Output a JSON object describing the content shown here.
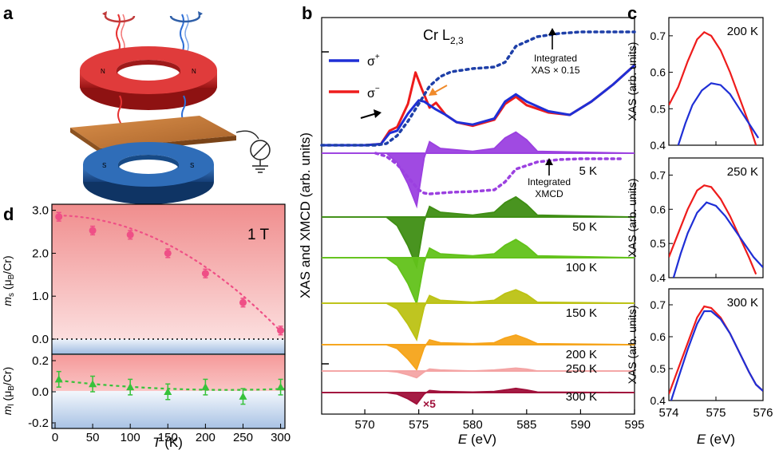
{
  "panel_labels": {
    "a": "a",
    "b": "b",
    "c": "c",
    "d": "d"
  },
  "colors": {
    "sigma_plus": "#1f2fd6",
    "sigma_minus": "#ee1c1c",
    "integrated": "#1e3fa8",
    "magnet_top": "#d42a2a",
    "magnet_bottom": "#1f5fa8",
    "sample": "#c77a3a",
    "ms_marker": "#ef4f86",
    "ml_marker": "#37c23a"
  },
  "panel_b": {
    "ylabel": "XAS and XMCD (arb. units)",
    "xlabel_var": "E",
    "xlabel_unit": " (eV)",
    "edge_label": "Cr L",
    "edge_sub": "2,3",
    "legend": [
      {
        "label": "σ",
        "sup": "+",
        "color": "#1f2fd6"
      },
      {
        "label": "σ",
        "sup": "−",
        "color": "#ee1c1c"
      }
    ],
    "annotation_xas": [
      "Integrated",
      "XAS × 0.15"
    ],
    "annotation_xmcd": [
      "Integrated",
      "XMCD"
    ],
    "multiplier": "×5",
    "xticks": [
      570,
      575,
      580,
      585,
      590,
      595
    ],
    "xlim": [
      566,
      595
    ]
  },
  "panel_c": {
    "ylabel": "XAS (arb. units)",
    "xlabel_var": "E",
    "xlabel_unit": " (eV)",
    "xticks": [
      574,
      575,
      576
    ],
    "yticks": [
      0.4,
      0.5,
      0.6,
      0.7
    ],
    "xlim": [
      574,
      576
    ],
    "ylim": [
      0.4,
      0.75
    ]
  },
  "panel_d": {
    "field_label": "1 T",
    "xlabel_var": "T",
    "xlabel_unit": " (K)",
    "ylabel_top": "m",
    "ylabel_top_sub": "s",
    "ylabel_top_unit": "(μ",
    "ylabel_top_unit2": "/Cr)",
    "ylabel_bottom": "m",
    "ylabel_bottom_sub": "l",
    "ylabel_sub_B": "B",
    "xticks": [
      0,
      50,
      100,
      150,
      200,
      250,
      300
    ],
    "yticks_top": [
      "0.0",
      "1.0",
      "2.0",
      "3.0"
    ],
    "yticks_bottom": [
      "-0.2",
      "0.0",
      "0.2"
    ]
  },
  "chart_data": [
    {
      "type": "line",
      "panel": "b",
      "xlabel": "E (eV)",
      "ylabel": "XAS and XMCD (arb. units)",
      "xlim": [
        566,
        595
      ],
      "series": [
        {
          "name": "σ+",
          "x": [
            566,
            570,
            571.5,
            572.3,
            573,
            574,
            575,
            575.5,
            576.5,
            577.5,
            578.5,
            580,
            582,
            583,
            584,
            585,
            587,
            589,
            591,
            593,
            595
          ],
          "values": [
            0.3,
            0.3,
            0.31,
            0.4,
            0.42,
            0.56,
            0.67,
            0.66,
            0.6,
            0.55,
            0.49,
            0.47,
            0.52,
            0.66,
            0.72,
            0.66,
            0.58,
            0.55,
            0.66,
            0.8,
            0.96
          ]
        },
        {
          "name": "σ−",
          "x": [
            566,
            570,
            571.5,
            572.3,
            573,
            574,
            574.7,
            575.3,
            576,
            576.6,
            577.5,
            578.5,
            580,
            582,
            583,
            584,
            585,
            587,
            589,
            591,
            593,
            595
          ],
          "values": [
            0.3,
            0.3,
            0.31,
            0.42,
            0.45,
            0.64,
            0.9,
            0.76,
            0.61,
            0.65,
            0.55,
            0.49,
            0.46,
            0.51,
            0.64,
            0.7,
            0.63,
            0.57,
            0.55,
            0.66,
            0.8,
            0.96
          ]
        }
      ]
    },
    {
      "type": "area",
      "panel": "b",
      "series": [
        {
          "name": "5 K",
          "temperature": 5,
          "x": [
            566,
            572,
            573,
            574,
            574.8,
            575.5,
            576,
            577,
            580,
            582,
            583,
            584,
            585,
            586,
            595
          ],
          "values": [
            0,
            0,
            -0.1,
            -0.32,
            -0.55,
            -0.05,
            0.12,
            0.05,
            0.02,
            0.05,
            0.16,
            0.22,
            0.14,
            0.02,
            0
          ]
        },
        {
          "name": "50 K",
          "temperature": 50,
          "x": [
            566,
            572,
            573,
            574,
            574.8,
            575.5,
            576,
            577,
            580,
            582,
            583,
            584,
            585,
            586,
            595
          ],
          "values": [
            0,
            0,
            -0.09,
            -0.3,
            -0.52,
            -0.05,
            0.11,
            0.05,
            0.02,
            0.05,
            0.15,
            0.21,
            0.13,
            0.02,
            0
          ]
        },
        {
          "name": "100 K",
          "temperature": 100,
          "x": [
            566,
            572,
            573,
            574,
            574.8,
            575.5,
            576,
            577,
            580,
            582,
            583,
            584,
            585,
            586,
            595
          ],
          "values": [
            0,
            0,
            -0.08,
            -0.27,
            -0.48,
            -0.05,
            0.1,
            0.04,
            0.02,
            0.04,
            0.13,
            0.19,
            0.12,
            0.02,
            0
          ]
        },
        {
          "name": "150 K",
          "temperature": 150,
          "x": [
            566,
            572,
            573,
            574,
            574.8,
            575.5,
            576,
            577,
            580,
            582,
            583,
            584,
            585,
            586,
            595
          ],
          "values": [
            0,
            0,
            -0.06,
            -0.22,
            -0.38,
            -0.04,
            0.08,
            0.03,
            0.01,
            0.03,
            0.1,
            0.14,
            0.09,
            0.01,
            0
          ]
        },
        {
          "name": "200 K",
          "temperature": 200,
          "x": [
            566,
            572,
            573,
            574,
            574.8,
            575.5,
            576,
            577,
            580,
            582,
            583,
            584,
            585,
            586,
            595
          ],
          "values": [
            0,
            0,
            -0.04,
            -0.15,
            -0.26,
            -0.03,
            0.05,
            0.02,
            0.01,
            0.02,
            0.07,
            0.1,
            0.06,
            0.01,
            0
          ]
        },
        {
          "name": "250 K",
          "temperature": 250,
          "x": [
            566,
            572,
            573,
            574,
            574.8,
            575.5,
            576,
            577,
            580,
            582,
            583,
            584,
            585,
            586,
            595
          ],
          "values": [
            0,
            0,
            -0.01,
            -0.04,
            -0.07,
            -0.01,
            0.02,
            0.01,
            0.0,
            0.01,
            0.02,
            0.03,
            0.02,
            0.0,
            0
          ]
        },
        {
          "name": "300 K",
          "temperature": 300,
          "x": [
            566,
            572,
            573,
            574,
            574.8,
            575.5,
            576,
            577,
            580,
            582,
            583,
            584,
            585,
            586,
            595
          ],
          "values": [
            0,
            0,
            -0.03,
            -0.12,
            -0.22,
            -0.03,
            0.04,
            0.02,
            0.01,
            0.02,
            0.05,
            0.08,
            0.05,
            0.01,
            0
          ]
        }
      ]
    },
    {
      "type": "line",
      "panel": "c",
      "temperature": "200 K",
      "xlim": [
        574,
        576
      ],
      "ylim": [
        0.4,
        0.75
      ],
      "series": [
        {
          "name": "σ−",
          "x": [
            574,
            574.2,
            574.4,
            574.6,
            574.75,
            574.9,
            575.1,
            575.3,
            575.5,
            575.7,
            575.85
          ],
          "values": [
            0.51,
            0.56,
            0.63,
            0.69,
            0.71,
            0.7,
            0.66,
            0.6,
            0.53,
            0.46,
            0.4
          ]
        },
        {
          "name": "σ+",
          "x": [
            574.2,
            574.35,
            574.5,
            574.7,
            574.9,
            575.1,
            575.3,
            575.5,
            575.7,
            575.9
          ],
          "values": [
            0.4,
            0.46,
            0.51,
            0.55,
            0.57,
            0.565,
            0.54,
            0.5,
            0.46,
            0.42
          ]
        }
      ]
    },
    {
      "type": "line",
      "panel": "c",
      "temperature": "250 K",
      "xlim": [
        574,
        576
      ],
      "ylim": [
        0.4,
        0.75
      ],
      "series": [
        {
          "name": "σ−",
          "x": [
            574,
            574.2,
            574.4,
            574.6,
            574.75,
            574.9,
            575.1,
            575.3,
            575.5,
            575.7,
            575.85
          ],
          "values": [
            0.46,
            0.53,
            0.6,
            0.655,
            0.67,
            0.665,
            0.63,
            0.58,
            0.52,
            0.46,
            0.41
          ]
        },
        {
          "name": "σ+",
          "x": [
            574.1,
            574.25,
            574.4,
            574.6,
            574.8,
            575.0,
            575.2,
            575.4,
            575.6,
            575.8,
            576
          ],
          "values": [
            0.4,
            0.47,
            0.53,
            0.59,
            0.62,
            0.61,
            0.58,
            0.54,
            0.5,
            0.46,
            0.43
          ]
        }
      ]
    },
    {
      "type": "line",
      "panel": "c",
      "temperature": "300 K",
      "xlim": [
        574,
        576
      ],
      "ylim": [
        0.4,
        0.75
      ],
      "series": [
        {
          "name": "σ−",
          "x": [
            574,
            574.2,
            574.4,
            574.6,
            574.75,
            574.9,
            575.1,
            575.3,
            575.5,
            575.7,
            575.85,
            576
          ],
          "values": [
            0.42,
            0.5,
            0.58,
            0.66,
            0.695,
            0.69,
            0.66,
            0.61,
            0.55,
            0.49,
            0.45,
            0.43
          ]
        },
        {
          "name": "σ+",
          "x": [
            574.05,
            574.2,
            574.4,
            574.6,
            574.75,
            574.9,
            575.1,
            575.3,
            575.5,
            575.7,
            575.85,
            576
          ],
          "values": [
            0.4,
            0.47,
            0.56,
            0.64,
            0.68,
            0.68,
            0.655,
            0.61,
            0.55,
            0.49,
            0.45,
            0.43
          ]
        }
      ]
    },
    {
      "type": "scatter",
      "panel": "d",
      "xlabel": "T (K)",
      "ylabel": "m_s (μB/Cr)",
      "xlim": [
        0,
        310
      ],
      "ylim": [
        -0.3,
        3.0
      ],
      "series": [
        {
          "name": "m_s",
          "x": [
            5,
            50,
            100,
            150,
            200,
            250,
            300
          ],
          "values": [
            2.85,
            2.53,
            2.43,
            2.0,
            1.53,
            0.85,
            0.2
          ],
          "errors": [
            0.1,
            0.1,
            0.1,
            0.1,
            0.1,
            0.1,
            0.1
          ]
        }
      ]
    },
    {
      "type": "scatter",
      "panel": "d",
      "xlabel": "T (K)",
      "ylabel": "m_l (μB/Cr)",
      "xlim": [
        0,
        310
      ],
      "ylim": [
        -0.2,
        0.2
      ],
      "series": [
        {
          "name": "m_l",
          "x": [
            5,
            50,
            100,
            150,
            200,
            250,
            300
          ],
          "values": [
            0.08,
            0.05,
            0.03,
            0.0,
            0.03,
            -0.03,
            0.03
          ],
          "errors": [
            0.05,
            0.05,
            0.05,
            0.05,
            0.05,
            0.05,
            0.05
          ]
        }
      ]
    }
  ]
}
